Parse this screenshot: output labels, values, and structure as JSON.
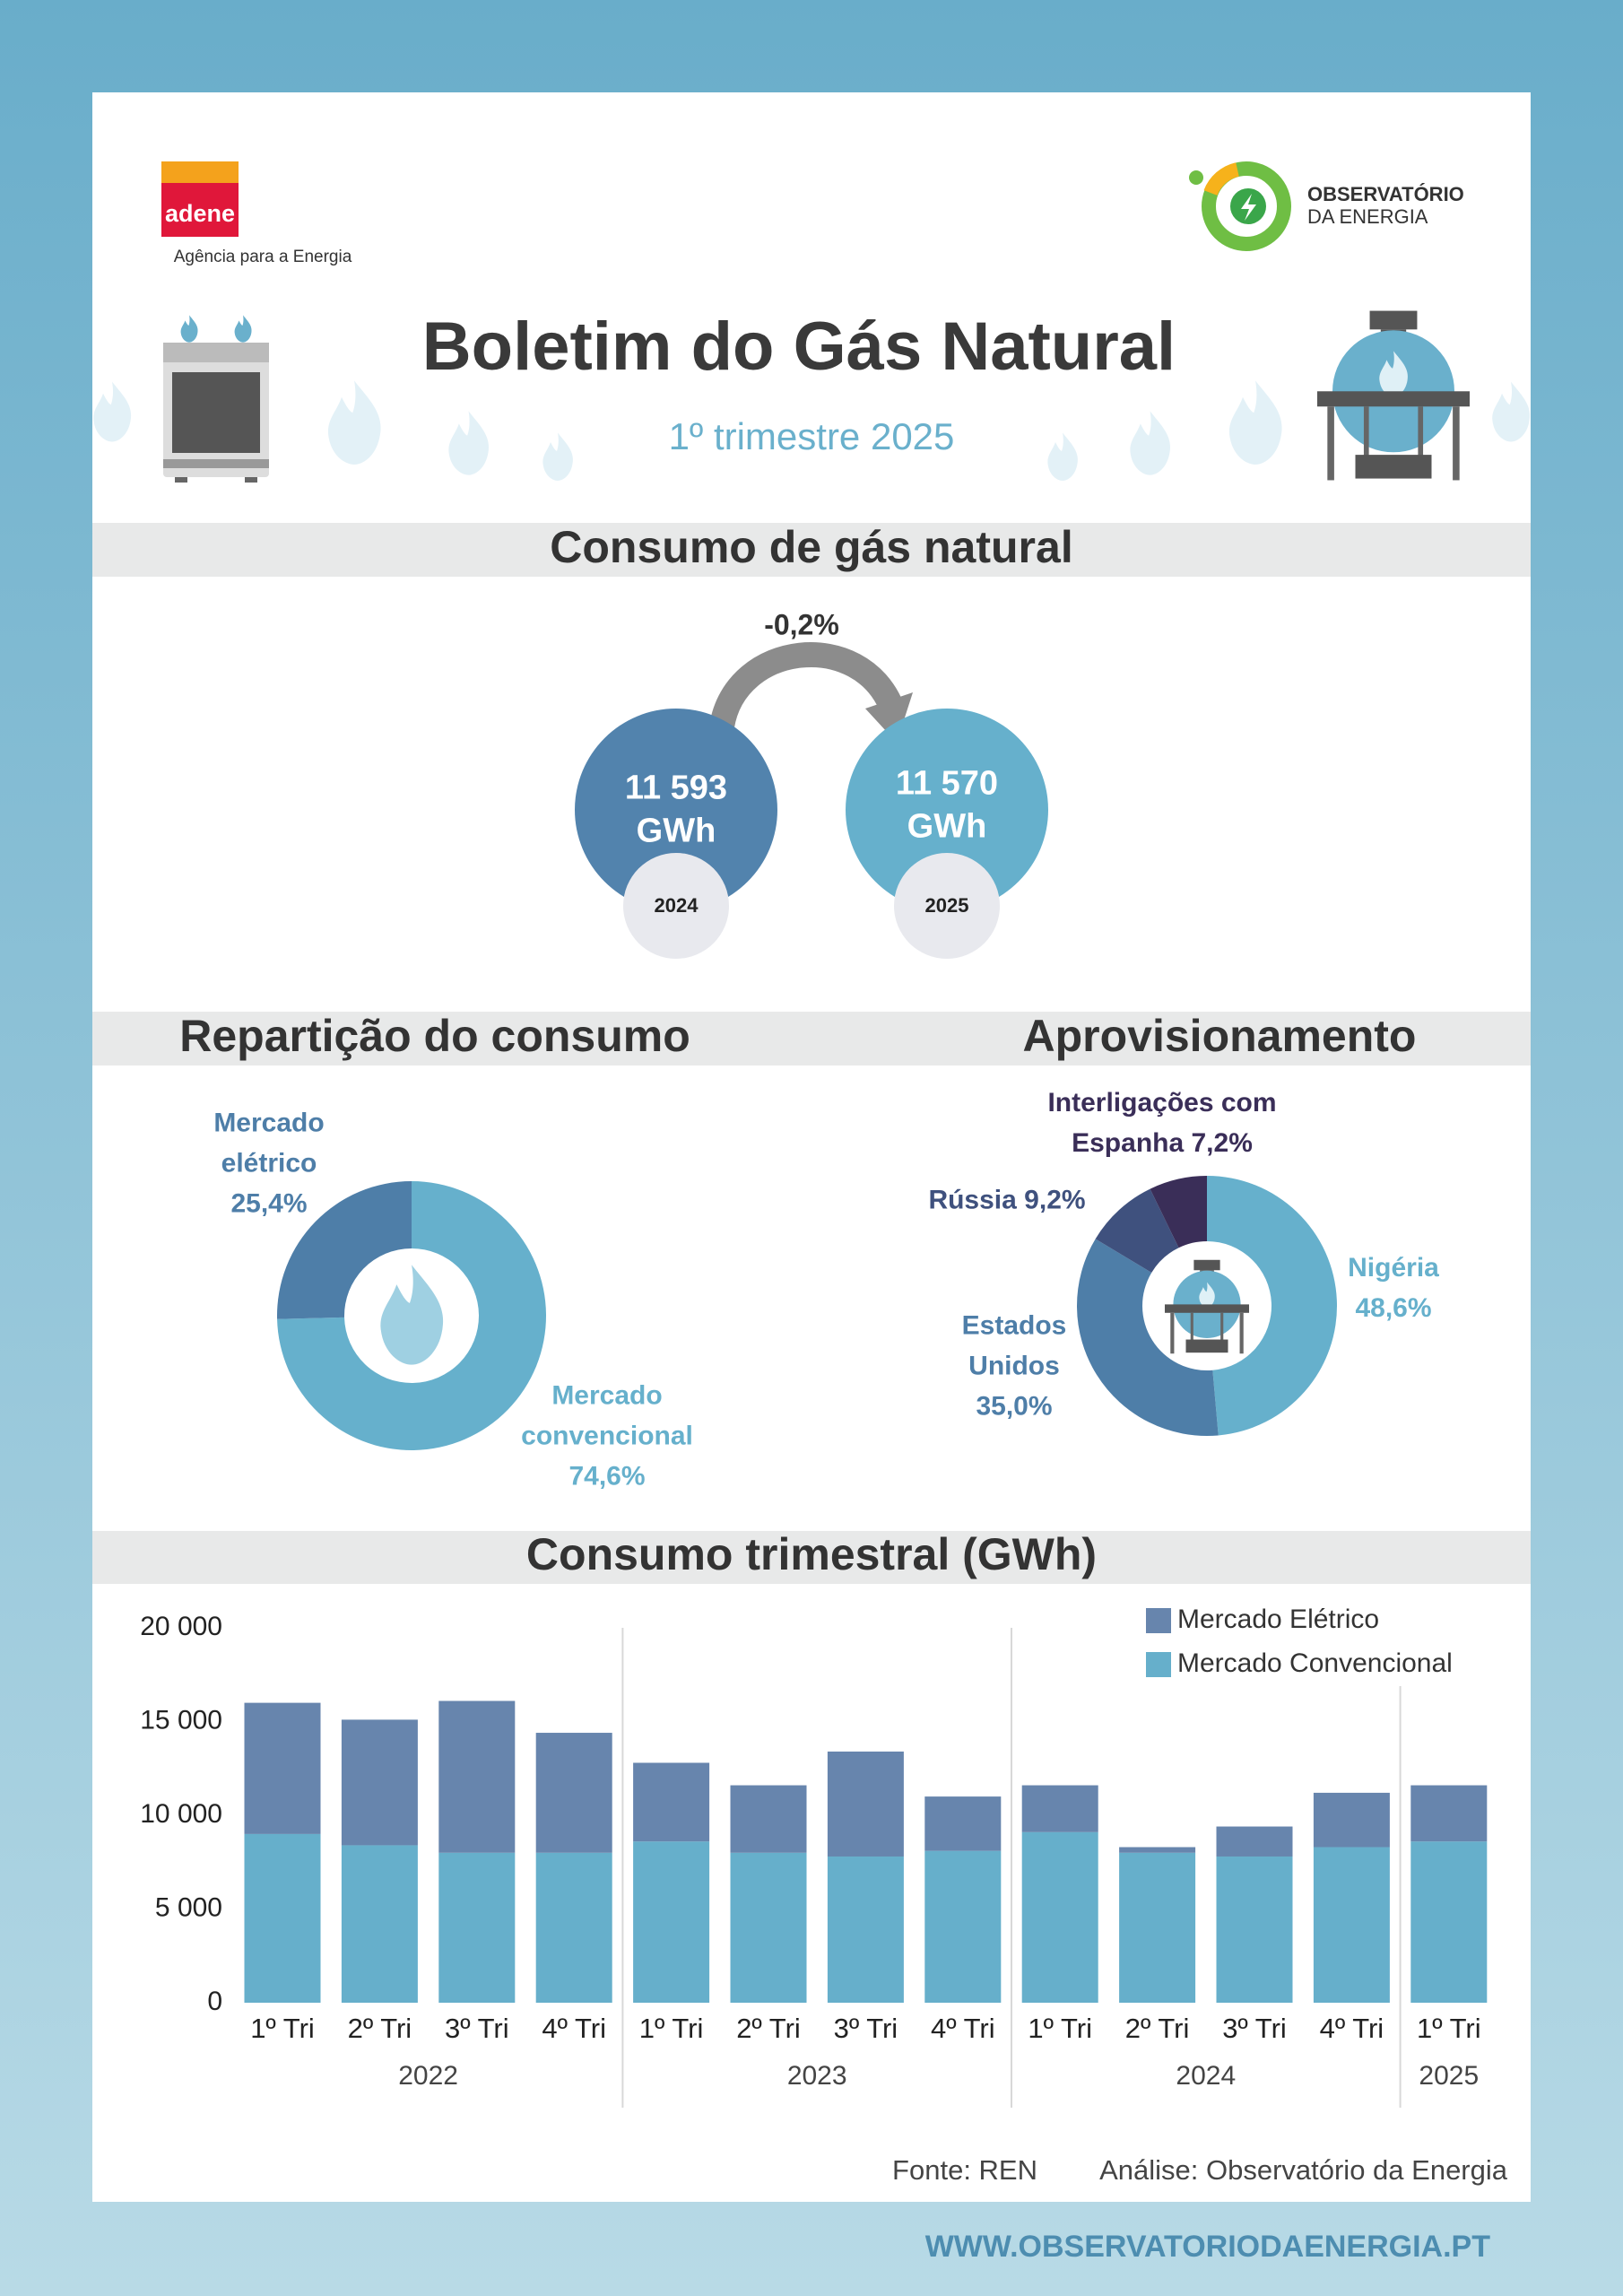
{
  "header": {
    "logo": "adene",
    "logo_tagline": "Agência para a Energia",
    "partner_logo": {
      "line1": "OBSERVATÓRIO",
      "line2": "DA ENERGIA"
    },
    "title": "Boletim do Gás Natural",
    "subtitle": "1º trimestre 2025"
  },
  "consumption": {
    "title": "Consumo de gás natural",
    "change": "-0,2%",
    "items": [
      {
        "value": "11 593 GWh",
        "year": "2024"
      },
      {
        "value": "11 570 GWh",
        "year": "2025"
      }
    ]
  },
  "chart_data": [
    {
      "type": "donut",
      "title": "Repartição do consumo",
      "categories": [
        "Mercado convencional",
        "Mercado elétrico"
      ],
      "values": [
        74.6,
        25.4
      ],
      "value_labels": [
        "74,6%",
        "25,4%"
      ],
      "colors": [
        "#66b0cc",
        "#4e7ea8"
      ]
    },
    {
      "type": "donut",
      "title": "Aprovisionamento",
      "categories": [
        "Nigéria",
        "Estados Unidos",
        "Rússia",
        "Interligações com Espanha"
      ],
      "values": [
        48.6,
        35.0,
        9.2,
        7.2
      ],
      "value_labels": [
        "48,6%",
        "35,0%",
        "9,2%",
        "7,2%"
      ],
      "colors": [
        "#66b0cc",
        "#4e7ea8",
        "#3f517e",
        "#3a2e58"
      ]
    },
    {
      "type": "stacked_bar",
      "title": "Consumo trimestral (GWh)",
      "groups": [
        {
          "name": "2022",
          "categories": [
            "1º Tri",
            "2º Tri",
            "3º Tri",
            "4º Tri"
          ]
        },
        {
          "name": "2023",
          "categories": [
            "1º Tri",
            "2º Tri",
            "3º Tri",
            "4º Tri"
          ]
        },
        {
          "name": "2024",
          "categories": [
            "1º Tri",
            "2º Tri",
            "3º Tri",
            "4º Tri"
          ]
        },
        {
          "name": "2025",
          "categories": [
            "1º Tri"
          ]
        }
      ],
      "series": [
        {
          "name": "Mercado Elétrico",
          "color": "#6785ad",
          "values": [
            7000,
            6700,
            8100,
            6400,
            4200,
            3600,
            5600,
            2900,
            2500,
            300,
            1600,
            2900,
            3000
          ]
        },
        {
          "name": "Mercado Convencional",
          "color": "#66afcb",
          "values": [
            9000,
            8400,
            8000,
            8000,
            8600,
            8000,
            7800,
            8100,
            9100,
            8000,
            7800,
            8300,
            8600
          ]
        }
      ],
      "ylim": [
        0,
        20000
      ],
      "yticks": [
        0,
        {
          "value": 5000,
          "label": "5 000"
        },
        {
          "value": 10000,
          "label": "10 000"
        },
        {
          "value": 15000,
          "label": "15 000"
        },
        {
          "value": 20000,
          "label": "20 000"
        }
      ],
      "grid": false,
      "legend": "top-right"
    }
  ],
  "footer": {
    "source": "Fonte: REN",
    "analysis": "Análise: Observatório da Energia",
    "url": "WWW.OBSERVATORIODAENERGIA.PT"
  }
}
